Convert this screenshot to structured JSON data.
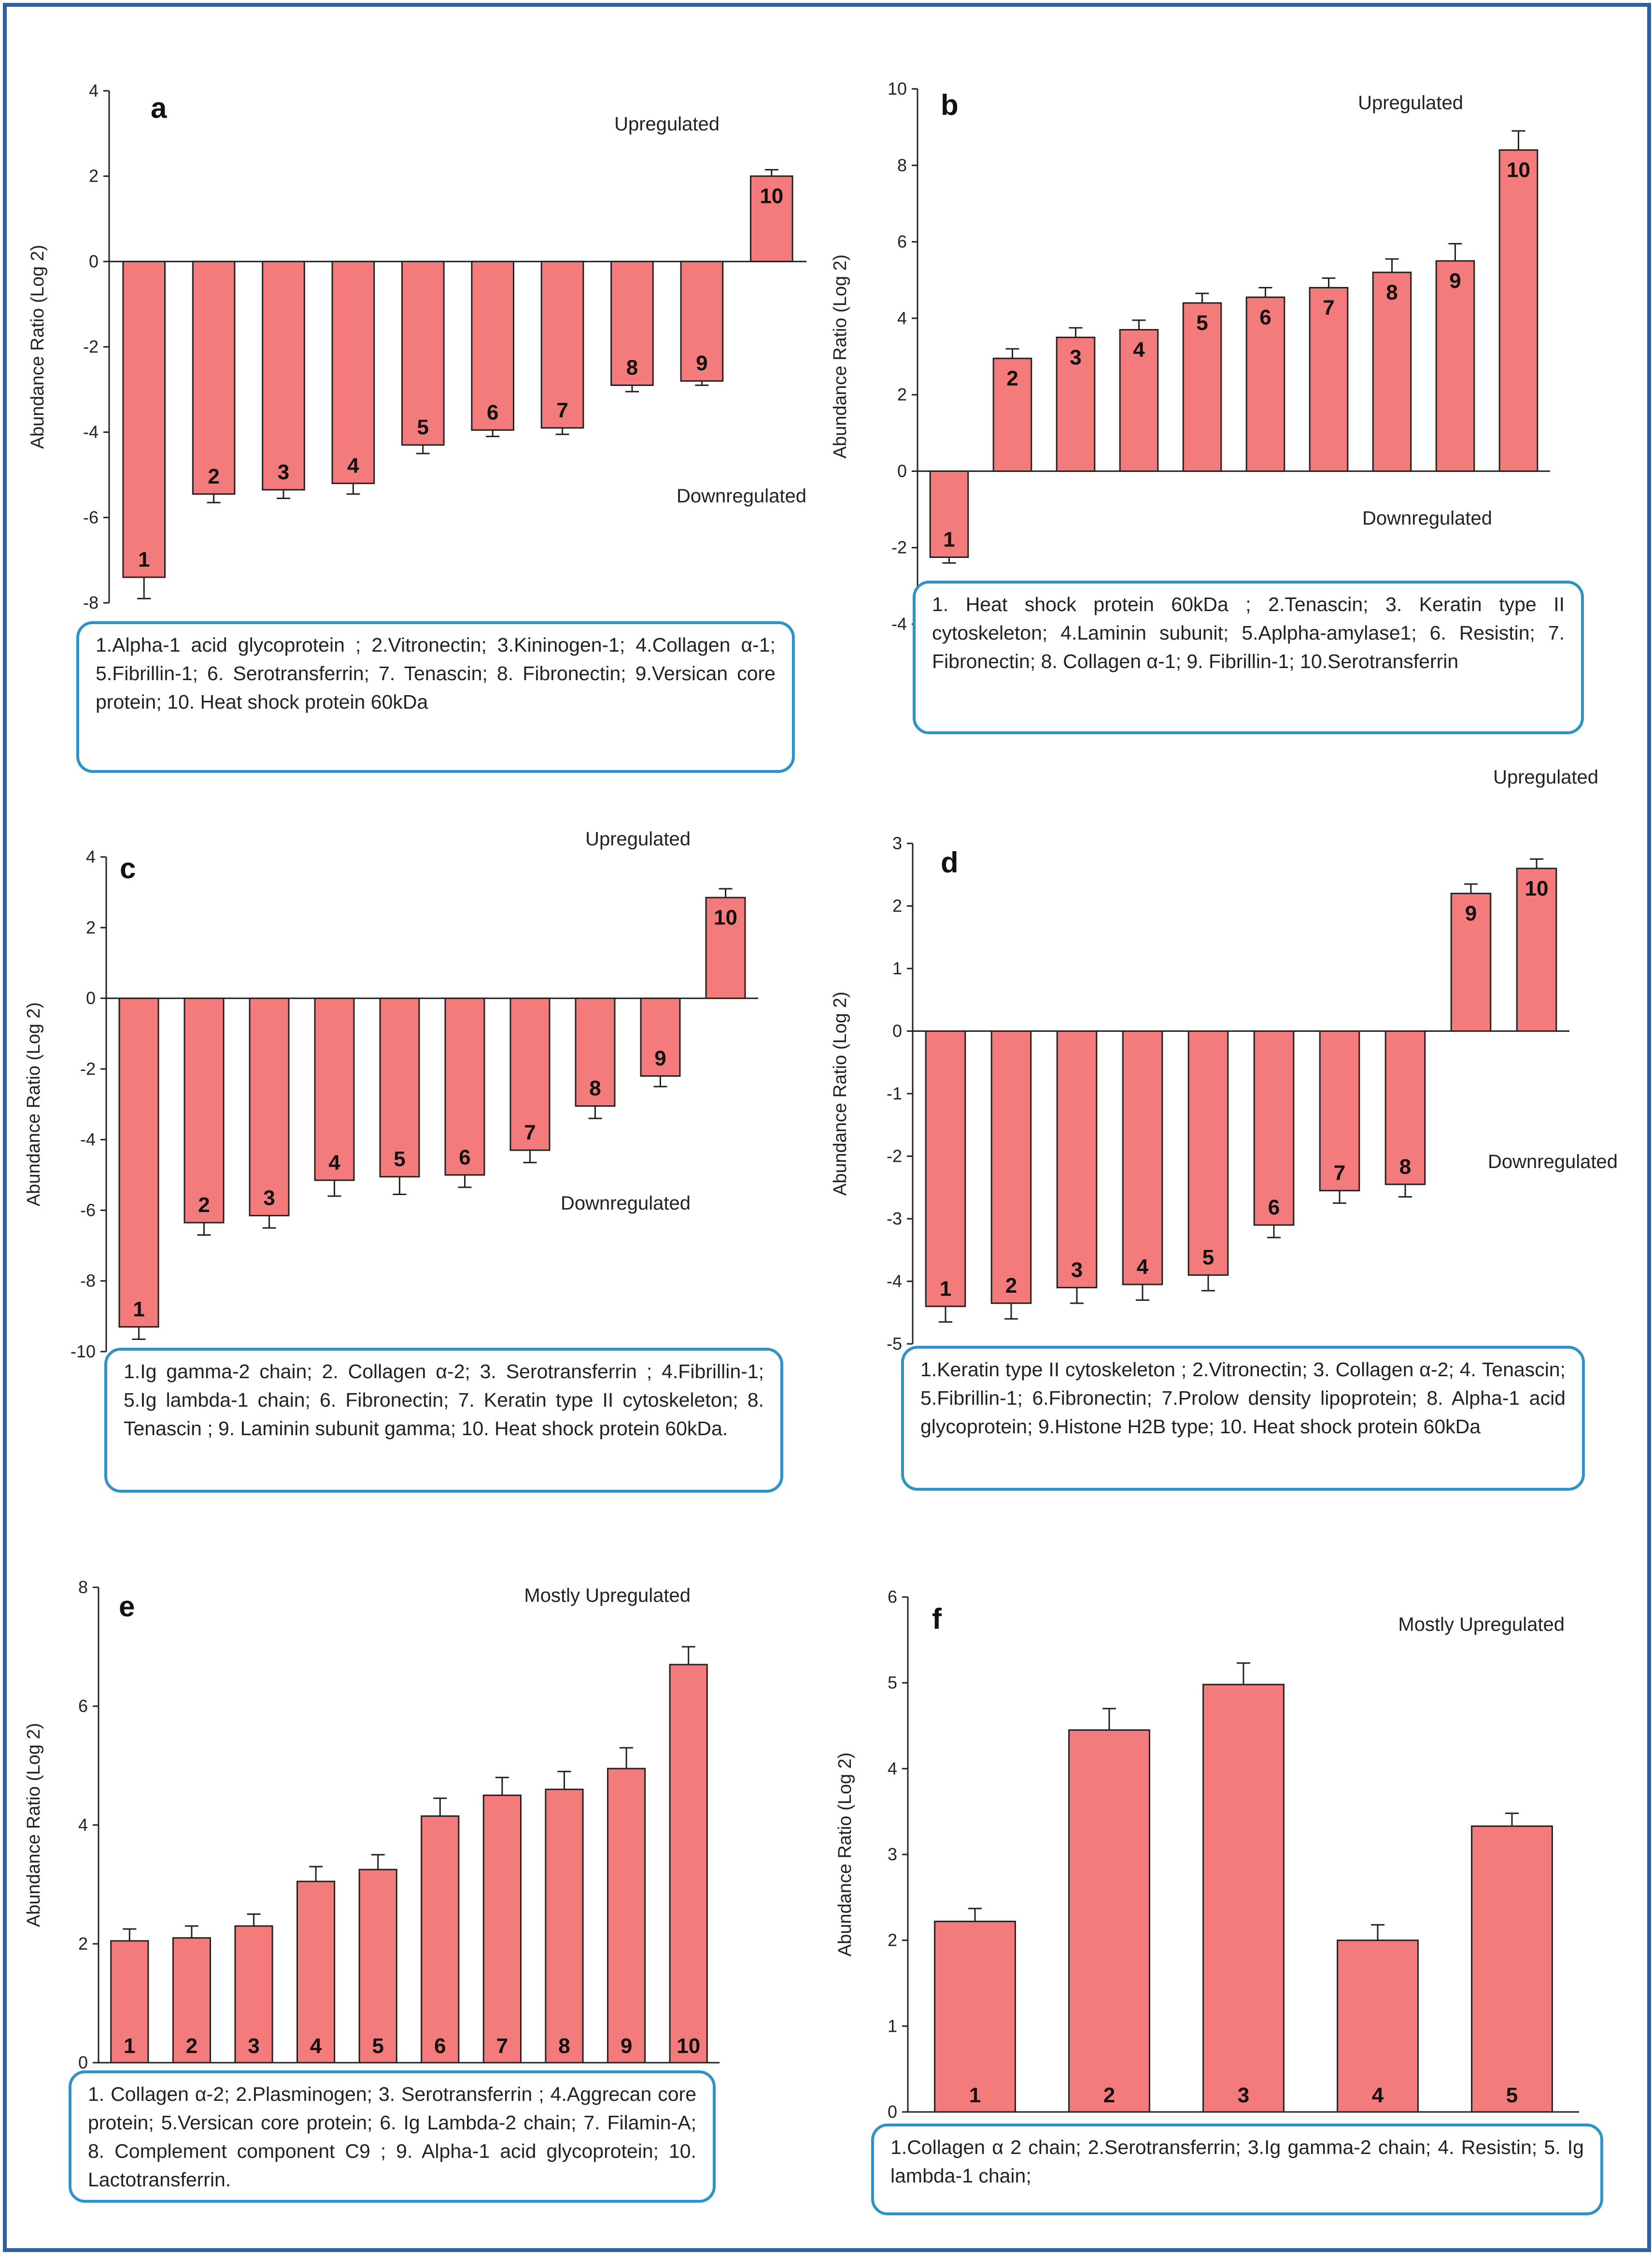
{
  "colors": {
    "bar": "#f47b7b",
    "bar_stroke": "#222222",
    "frame": "#2d5fa4",
    "legend_border": "#2f93c8"
  },
  "chart_data": [
    {
      "id": "a",
      "type": "bar",
      "panel_label": "a",
      "ylabel": "Abundance Ratio (Log 2)",
      "ylim": [
        -8,
        4
      ],
      "yticks": [
        4,
        2,
        0,
        -2,
        -4,
        -6,
        -8
      ],
      "categories": [
        "1",
        "2",
        "3",
        "4",
        "5",
        "6",
        "7",
        "8",
        "9",
        "10"
      ],
      "values": [
        -7.4,
        -5.45,
        -5.35,
        -5.2,
        -4.3,
        -3.95,
        -3.9,
        -2.9,
        -2.8,
        2.0
      ],
      "errors": [
        0.5,
        0.2,
        0.2,
        0.25,
        0.2,
        0.15,
        0.15,
        0.15,
        0.1,
        0.15
      ],
      "annotations": [
        "Upregulated",
        "Downregulated"
      ],
      "legend": "1.Alpha-1 acid glycoprotein ; 2.Vitronectin; 3.Kininogen-1; 4.Collagen α-1; 5.Fibrillin-1; 6. Serotransferrin; 7. Tenascin; 8. Fibronectin; 9.Versican core protein; 10. Heat shock protein 60kDa"
    },
    {
      "id": "b",
      "type": "bar",
      "panel_label": "b",
      "ylabel": "Abundance Ratio (Log 2)",
      "ylim": [
        -4,
        10
      ],
      "yticks": [
        10,
        8,
        6,
        4,
        2,
        0,
        -2,
        -4
      ],
      "categories": [
        "1",
        "2",
        "3",
        "4",
        "5",
        "6",
        "7",
        "8",
        "9",
        "10"
      ],
      "values": [
        -2.25,
        2.95,
        3.5,
        3.7,
        4.4,
        4.55,
        4.8,
        5.2,
        5.5,
        8.4
      ],
      "errors": [
        0.15,
        0.25,
        0.25,
        0.25,
        0.25,
        0.25,
        0.25,
        0.35,
        0.45,
        0.5
      ],
      "annotations": [
        "Upregulated",
        "Downregulated"
      ],
      "legend": "1. Heat shock protein 60kDa ; 2.Tenascin; 3. Keratin type II cytoskeleton; 4.Laminin subunit; 5.Aplpha-amylase1; 6. Resistin; 7. Fibronectin; 8. Collagen α-1; 9. Fibrillin-1; 10.Serotransferrin"
    },
    {
      "id": "c",
      "type": "bar",
      "panel_label": "c",
      "ylabel": "Abundance Ratio (Log 2)",
      "ylim": [
        -10,
        4
      ],
      "yticks": [
        4,
        2,
        0,
        -2,
        -4,
        -6,
        -8,
        -10
      ],
      "categories": [
        "1",
        "2",
        "3",
        "4",
        "5",
        "6",
        "7",
        "8",
        "9",
        "10"
      ],
      "values": [
        -9.3,
        -6.35,
        -6.15,
        -5.15,
        -5.05,
        -5.0,
        -4.3,
        -3.05,
        -2.2,
        2.85
      ],
      "errors": [
        0.35,
        0.35,
        0.35,
        0.45,
        0.5,
        0.35,
        0.35,
        0.35,
        0.3,
        0.25
      ],
      "annotations": [
        "Upregulated",
        "Downregulated"
      ],
      "legend": "1.Ig gamma-2 chain; 2. Collagen α-2; 3. Serotransferrin ; 4.Fibrillin-1; 5.Ig lambda-1 chain; 6. Fibronectin; 7. Keratin type II cytoskeleton; 8. Tenascin ; 9. Laminin subunit gamma; 10. Heat shock protein 60kDa."
    },
    {
      "id": "d",
      "type": "bar",
      "panel_label": "d",
      "ylabel": "Abundance Ratio (Log 2)",
      "ylim": [
        -5,
        3
      ],
      "yticks": [
        3,
        2,
        1,
        0,
        -1,
        -2,
        -3,
        -4,
        -5
      ],
      "categories": [
        "1",
        "2",
        "3",
        "4",
        "5",
        "6",
        "7",
        "8",
        "9",
        "10"
      ],
      "values": [
        -4.4,
        -4.35,
        -4.1,
        -4.05,
        -3.9,
        -3.1,
        -2.55,
        -2.45,
        2.2,
        2.6
      ],
      "errors": [
        0.25,
        0.25,
        0.25,
        0.25,
        0.25,
        0.2,
        0.2,
        0.2,
        0.15,
        0.15
      ],
      "annotations": [
        "Upregulated",
        "Downregulated"
      ],
      "legend": "1.Keratin type II cytoskeleton ; 2.Vitronectin; 3. Collagen α-2; 4. Tenascin; 5.Fibrillin-1; 6.Fibronectin; 7.Prolow density lipoprotein; 8. Alpha-1 acid glycoprotein; 9.Histone H2B type; 10. Heat shock protein 60kDa"
    },
    {
      "id": "e",
      "type": "bar",
      "panel_label": "e",
      "ylabel": "Abundance Ratio (Log 2)",
      "ylim": [
        0,
        8
      ],
      "yticks": [
        8,
        6,
        4,
        2,
        0
      ],
      "categories": [
        "1",
        "2",
        "3",
        "4",
        "5",
        "6",
        "7",
        "8",
        "9",
        "10"
      ],
      "values": [
        2.05,
        2.1,
        2.3,
        3.05,
        3.25,
        4.15,
        4.5,
        4.6,
        4.95,
        6.7
      ],
      "errors": [
        0.2,
        0.2,
        0.2,
        0.25,
        0.25,
        0.3,
        0.3,
        0.3,
        0.35,
        0.3
      ],
      "annotations": [
        "Mostly Upregulated"
      ],
      "legend": "1. Collagen α-2; 2.Plasminogen; 3. Serotransferrin ; 4.Aggrecan core protein; 5.Versican core protein; 6. Ig Lambda-2 chain; 7. Filamin-A; 8. Complement component C9 ; 9. Alpha-1 acid glycoprotein; 10. Lactotransferrin."
    },
    {
      "id": "f",
      "type": "bar",
      "panel_label": "f",
      "ylabel": "Abundance Ratio (Log 2)",
      "ylim": [
        0,
        6
      ],
      "yticks": [
        6,
        5,
        4,
        3,
        2,
        1,
        0
      ],
      "categories": [
        "1",
        "2",
        "3",
        "4",
        "5"
      ],
      "values": [
        2.22,
        4.45,
        4.98,
        2.0,
        3.33
      ],
      "errors": [
        0.15,
        0.25,
        0.25,
        0.18,
        0.15
      ],
      "annotations": [
        "Mostly Upregulated"
      ],
      "legend": "1.Collagen α 2 chain; 2.Serotransferrin; 3.Ig gamma-2 chain; 4. Resistin; 5. Ig lambda-1 chain;"
    }
  ]
}
